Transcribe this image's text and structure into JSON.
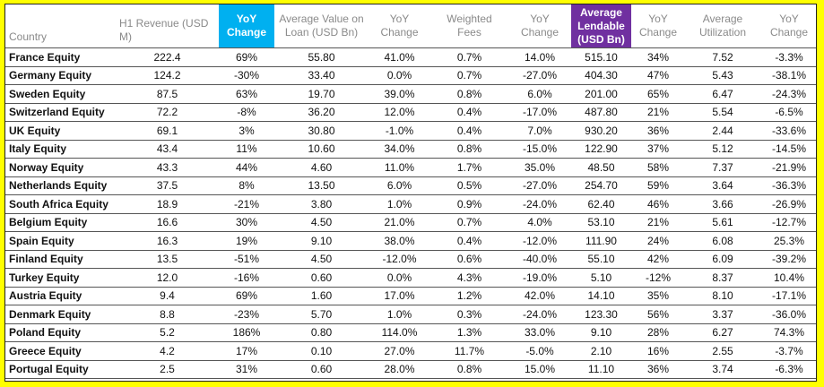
{
  "headers": [
    "Country",
    "H1 Revenue (USD M)",
    "YoY Change",
    "Average Value on Loan (USD Bn)",
    "YoY Change",
    "Weighted Fees",
    "YoY Change",
    "Average Lendable (USD Bn)",
    "YoY Change",
    "Average Utilization",
    "YoY Change"
  ],
  "highlight_colors": {
    "blue": "#00b0f0",
    "purple": "#7030a0",
    "frame": "#ffff00"
  },
  "rows": [
    [
      "France Equity",
      "222.4",
      "69%",
      "55.80",
      "41.0%",
      "0.7%",
      "14.0%",
      "515.10",
      "34%",
      "7.52",
      "-3.3%"
    ],
    [
      "Germany Equity",
      "124.2",
      "-30%",
      "33.40",
      "0.0%",
      "0.7%",
      "-27.0%",
      "404.30",
      "47%",
      "5.43",
      "-38.1%"
    ],
    [
      "Sweden Equity",
      "87.5",
      "63%",
      "19.70",
      "39.0%",
      "0.8%",
      "6.0%",
      "201.00",
      "65%",
      "6.47",
      "-24.3%"
    ],
    [
      "Switzerland Equity",
      "72.2",
      "-8%",
      "36.20",
      "12.0%",
      "0.4%",
      "-17.0%",
      "487.80",
      "21%",
      "5.54",
      "-6.5%"
    ],
    [
      "UK Equity",
      "69.1",
      "3%",
      "30.80",
      "-1.0%",
      "0.4%",
      "7.0%",
      "930.20",
      "36%",
      "2.44",
      "-33.6%"
    ],
    [
      "Italy Equity",
      "43.4",
      "11%",
      "10.60",
      "34.0%",
      "0.8%",
      "-15.0%",
      "122.90",
      "37%",
      "5.12",
      "-14.5%"
    ],
    [
      "Norway Equity",
      "43.3",
      "44%",
      "4.60",
      "11.0%",
      "1.7%",
      "35.0%",
      "48.50",
      "58%",
      "7.37",
      "-21.9%"
    ],
    [
      "Netherlands Equity",
      "37.5",
      "8%",
      "13.50",
      "6.0%",
      "0.5%",
      "-27.0%",
      "254.70",
      "59%",
      "3.64",
      "-36.3%"
    ],
    [
      "South Africa Equity",
      "18.9",
      "-21%",
      "3.80",
      "1.0%",
      "0.9%",
      "-24.0%",
      "62.40",
      "46%",
      "3.66",
      "-26.9%"
    ],
    [
      "Belgium Equity",
      "16.6",
      "30%",
      "4.50",
      "21.0%",
      "0.7%",
      "4.0%",
      "53.10",
      "21%",
      "5.61",
      "-12.7%"
    ],
    [
      "Spain Equity",
      "16.3",
      "19%",
      "9.10",
      "38.0%",
      "0.4%",
      "-12.0%",
      "111.90",
      "24%",
      "6.08",
      "25.3%"
    ],
    [
      "Finland Equity",
      "13.5",
      "-51%",
      "4.50",
      "-12.0%",
      "0.6%",
      "-40.0%",
      "55.10",
      "42%",
      "6.09",
      "-39.2%"
    ],
    [
      "Turkey Equity",
      "12.0",
      "-16%",
      "0.60",
      "0.0%",
      "4.3%",
      "-19.0%",
      "5.10",
      "-12%",
      "8.37",
      "10.4%"
    ],
    [
      "Austria Equity",
      "9.4",
      "69%",
      "1.60",
      "17.0%",
      "1.2%",
      "42.0%",
      "14.10",
      "35%",
      "8.10",
      "-17.1%"
    ],
    [
      "Denmark Equity",
      "8.8",
      "-23%",
      "5.70",
      "1.0%",
      "0.3%",
      "-24.0%",
      "123.30",
      "56%",
      "3.37",
      "-36.0%"
    ],
    [
      "Poland Equity",
      "5.2",
      "186%",
      "0.80",
      "114.0%",
      "1.3%",
      "33.0%",
      "9.10",
      "28%",
      "6.27",
      "74.3%"
    ],
    [
      "Greece Equity",
      "4.2",
      "17%",
      "0.10",
      "27.0%",
      "11.7%",
      "-5.0%",
      "2.10",
      "16%",
      "2.55",
      "-3.7%"
    ],
    [
      "Portugal Equity",
      "2.5",
      "31%",
      "0.60",
      "28.0%",
      "0.8%",
      "15.0%",
      "11.10",
      "36%",
      "3.74",
      "-6.3%"
    ]
  ]
}
